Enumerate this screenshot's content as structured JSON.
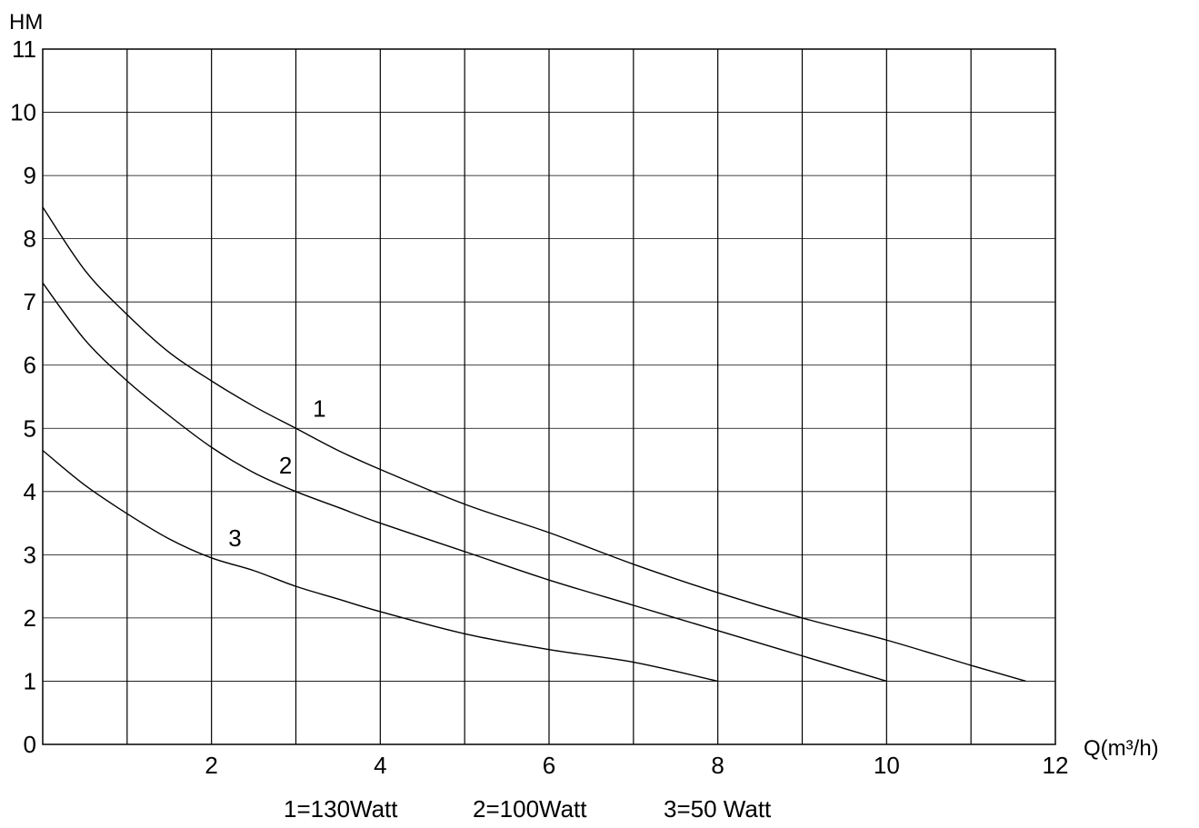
{
  "chart_data": {
    "type": "line",
    "title": "",
    "xlabel": "Q(m³/h)",
    "ylabel": "HM",
    "xlim": [
      0,
      12
    ],
    "ylim": [
      0,
      11
    ],
    "x_ticks": [
      2,
      4,
      6,
      8,
      10,
      12
    ],
    "y_ticks": [
      0,
      1,
      2,
      3,
      4,
      5,
      6,
      7,
      8,
      9,
      10,
      11
    ],
    "grid": {
      "vertical_step": 1,
      "horizontal_step": 1
    },
    "series": [
      {
        "name": "1",
        "x": [
          0,
          0.5,
          1,
          1.5,
          2,
          2.5,
          3,
          3.5,
          4,
          5,
          6,
          7,
          8,
          9,
          10,
          11,
          11.65
        ],
        "y": [
          8.5,
          7.5,
          6.8,
          6.2,
          5.75,
          5.35,
          5.0,
          4.65,
          4.35,
          3.8,
          3.35,
          2.85,
          2.4,
          2.0,
          1.65,
          1.25,
          1.0
        ]
      },
      {
        "name": "2",
        "x": [
          0,
          0.5,
          1,
          1.5,
          2,
          2.5,
          3,
          3.5,
          4,
          5,
          6,
          7,
          8,
          9,
          10
        ],
        "y": [
          7.3,
          6.4,
          5.75,
          5.2,
          4.7,
          4.3,
          4.0,
          3.75,
          3.5,
          3.05,
          2.6,
          2.2,
          1.8,
          1.4,
          1.0
        ]
      },
      {
        "name": "3",
        "x": [
          0,
          0.5,
          1,
          1.5,
          2,
          2.5,
          3,
          3.5,
          4,
          5,
          6,
          7,
          8
        ],
        "y": [
          4.65,
          4.1,
          3.65,
          3.25,
          2.95,
          2.75,
          2.5,
          2.3,
          2.1,
          1.75,
          1.5,
          1.3,
          1.0
        ]
      }
    ],
    "curve_labels": [
      {
        "text": "1",
        "x": 3.2,
        "y": 5.1
      },
      {
        "text": "2",
        "x": 2.8,
        "y": 4.2
      },
      {
        "text": "3",
        "x": 2.2,
        "y": 3.05
      }
    ],
    "legend": [
      "1=130Watt",
      "2=100Watt",
      "3=50 Watt"
    ],
    "colors": {
      "line": "#000000",
      "grid": "#000000",
      "background": "#ffffff"
    }
  }
}
